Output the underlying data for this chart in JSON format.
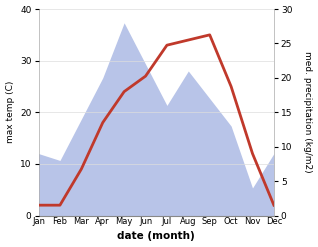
{
  "months": [
    "Jan",
    "Feb",
    "Mar",
    "Apr",
    "May",
    "Jun",
    "Jul",
    "Aug",
    "Sep",
    "Oct",
    "Nov",
    "Dec"
  ],
  "month_x": [
    1,
    2,
    3,
    4,
    5,
    6,
    7,
    8,
    9,
    10,
    11,
    12
  ],
  "temperature": [
    2,
    2,
    9,
    18,
    24,
    27,
    33,
    34,
    35,
    25,
    12,
    2
  ],
  "precipitation": [
    9,
    8,
    14,
    20,
    28,
    22,
    16,
    21,
    17,
    13,
    4,
    9
  ],
  "temp_color": "#c0392b",
  "precip_fill_color": "#b8c4e8",
  "temp_linewidth": 2.0,
  "xlabel": "date (month)",
  "ylabel_left": "max temp (C)",
  "ylabel_right": "med. precipitation (kg/m2)",
  "ylim_left": [
    0,
    40
  ],
  "ylim_right": [
    0,
    30
  ],
  "yticks_left": [
    0,
    10,
    20,
    30,
    40
  ],
  "yticks_right": [
    0,
    5,
    10,
    15,
    20,
    25,
    30
  ],
  "background_color": "#ffffff"
}
